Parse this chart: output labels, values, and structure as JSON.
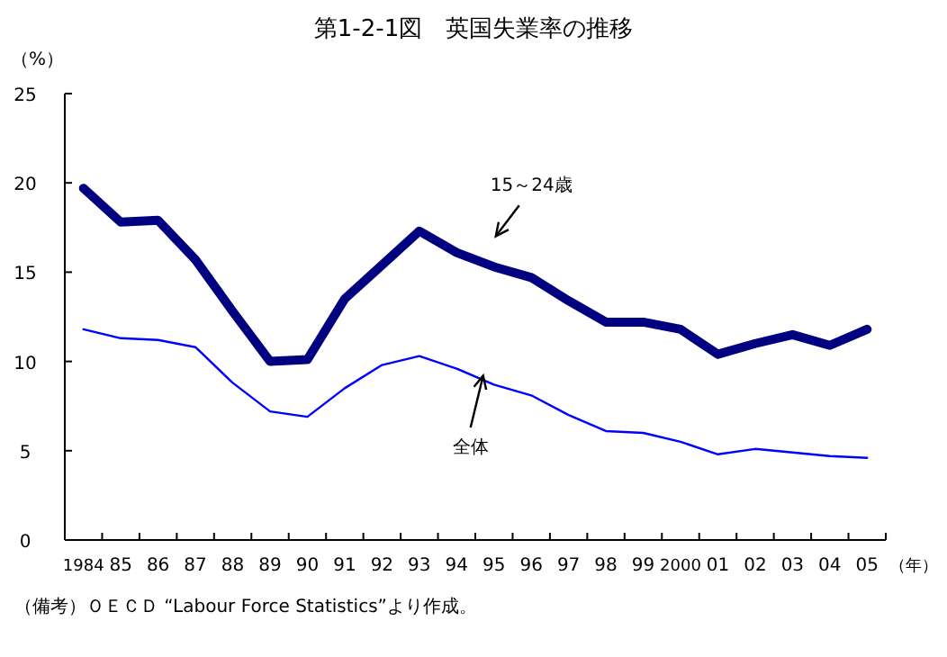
{
  "chart_data": {
    "type": "line",
    "title": "第1-2-1図　英国失業率の推移",
    "ylabel": "（%）",
    "xlabel": "（年）",
    "categories": [
      "1984",
      "85",
      "86",
      "87",
      "88",
      "89",
      "90",
      "91",
      "92",
      "93",
      "94",
      "95",
      "96",
      "97",
      "98",
      "99",
      "2000",
      "01",
      "02",
      "03",
      "04",
      "05"
    ],
    "series": [
      {
        "color": "#000080",
        "values": [
          19.7,
          17.8,
          17.9,
          15.7,
          12.8,
          10.0,
          10.1,
          13.5,
          15.4,
          17.3,
          16.1,
          15.3,
          14.7,
          13.4,
          12.2,
          12.2,
          11.8,
          10.4,
          11.0,
          11.5,
          10.9,
          11.8
        ]
      },
      {
        "color": "#0000ff",
        "values": [
          11.8,
          11.3,
          11.2,
          10.8,
          8.8,
          7.2,
          6.9,
          8.5,
          9.8,
          10.3,
          9.6,
          8.7,
          8.1,
          7.0,
          6.1,
          6.0,
          5.5,
          4.8,
          5.1,
          4.9,
          4.7,
          4.6
        ]
      }
    ],
    "ylim": [
      0,
      25
    ],
    "yticks": [
      0,
      5,
      10,
      15,
      20,
      25
    ],
    "grid": false,
    "marker": "none",
    "line_style": "solid",
    "annotations": [
      "15～24歳",
      "全体",
      "（備考）ＯＥＣＤ “Labour Force Statistics”より作成。"
    ]
  }
}
